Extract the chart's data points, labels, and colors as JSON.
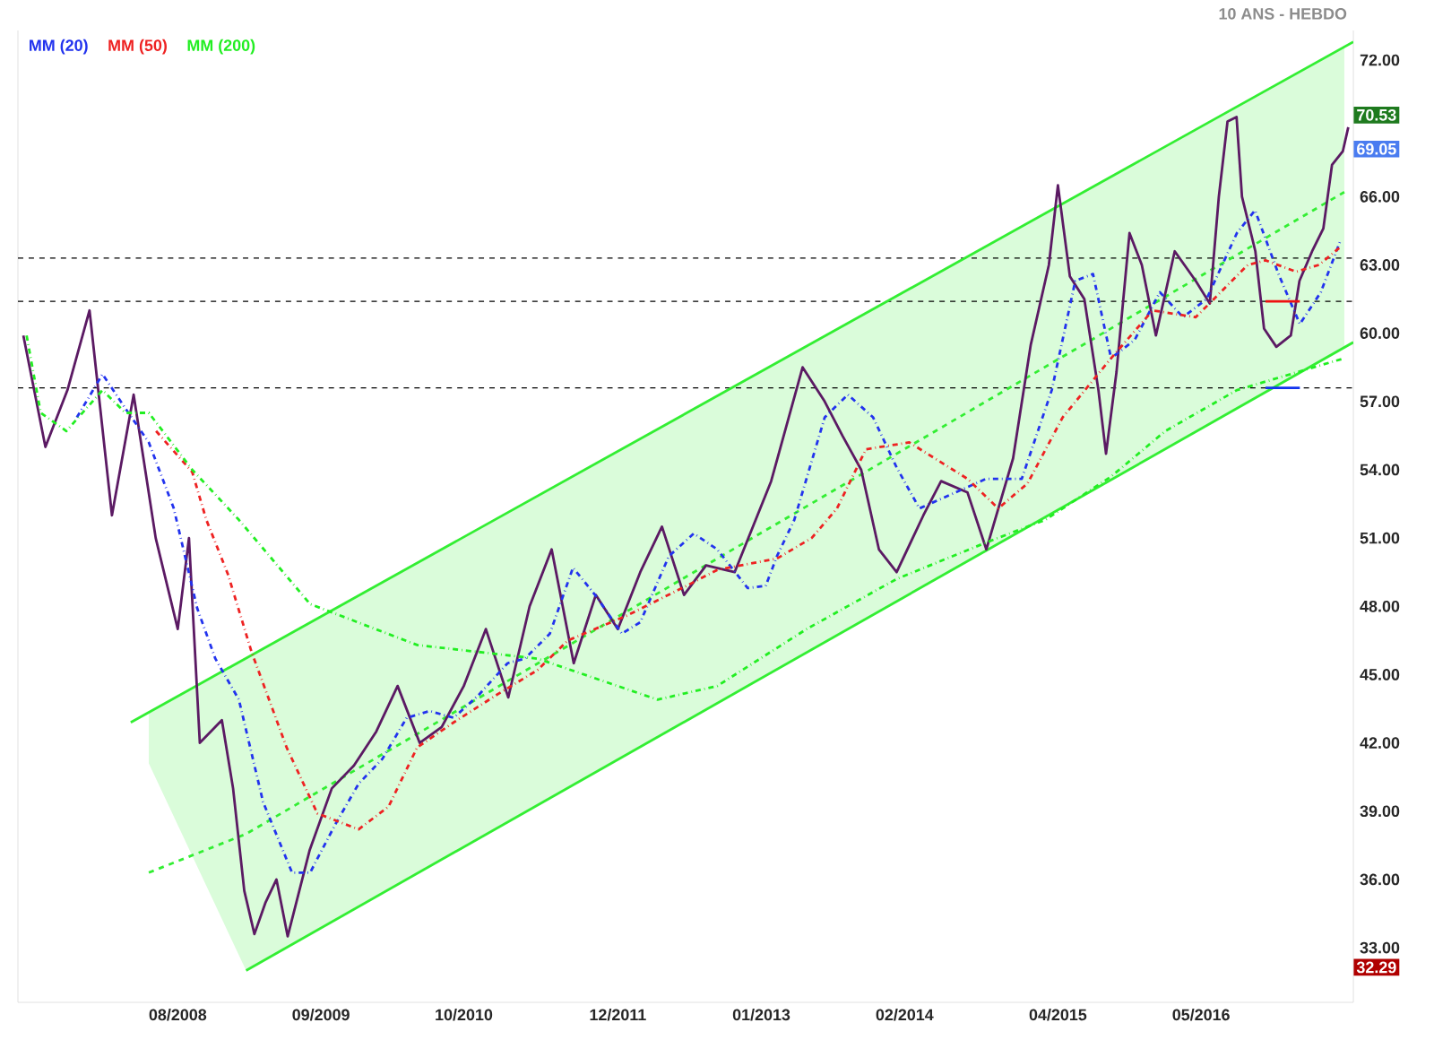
{
  "chart_data": {
    "type": "line",
    "subtitle": "10 ANS - HEBDO",
    "xlim": [
      "2007-05-17",
      "2017-06-26"
    ],
    "xticks": [
      {
        "value": "2008-08-01",
        "label": "08/2008"
      },
      {
        "value": "2009-09-01",
        "label": "09/2009"
      },
      {
        "value": "2010-10-01",
        "label": "10/2010"
      },
      {
        "value": "2011-12-01",
        "label": "12/2011"
      },
      {
        "value": "2013-01-01",
        "label": "01/2013"
      },
      {
        "value": "2014-02-01",
        "label": "02/2014"
      },
      {
        "value": "2015-04-01",
        "label": "04/2015"
      },
      {
        "value": "2016-05-01",
        "label": "05/2016"
      }
    ],
    "ylim": [
      30.6,
      73.3
    ],
    "yticks": [
      {
        "value": 33,
        "label": "33.00"
      },
      {
        "value": 36,
        "label": "36.00"
      },
      {
        "value": 39,
        "label": "39.00"
      },
      {
        "value": 42,
        "label": "42.00"
      },
      {
        "value": 45,
        "label": "45.00"
      },
      {
        "value": 48,
        "label": "48.00"
      },
      {
        "value": 51,
        "label": "51.00"
      },
      {
        "value": 54,
        "label": "54.00"
      },
      {
        "value": 57,
        "label": "57.00"
      },
      {
        "value": 60,
        "label": "60.00"
      },
      {
        "value": 63,
        "label": "63.00"
      },
      {
        "value": 66,
        "label": "66.00"
      },
      {
        "value": 72,
        "label": "72.00"
      }
    ],
    "legend": "top left",
    "series": [
      {
        "color": "#33ee33",
        "line_style": "dashed",
        "x": [
          "2008-05-13",
          "2009-02-06",
          "2017-06-01"
        ],
        "values": [
          36.3,
          38.0,
          66.2
        ],
        "lower": [
          41.1,
          32.0,
          59.4
        ],
        "upper": [
          43.3,
          45.7,
          72.6
        ]
      },
      {
        "color": "#33ee33",
        "line_style": "solid",
        "x": [
          "2008-03-24",
          "2017-06-26"
        ],
        "values": [
          42.9,
          72.8
        ]
      },
      {
        "color": "#33ee33",
        "line_style": "solid",
        "x": [
          "2009-02-06",
          "2017-06-26"
        ],
        "values": [
          32.0,
          59.6
        ]
      },
      {
        "color": "#5b1a63",
        "line_style": "solid",
        "x": [
          "2007-06-01",
          "2007-08-01",
          "2007-10-01",
          "2007-12-01",
          "2008-02-01",
          "2008-04-01",
          "2008-06-01",
          "2008-08-01",
          "2008-09-01",
          "2008-10-01",
          "2008-12-01",
          "2009-01-01",
          "2009-02-01",
          "2009-03-01",
          "2009-04-01",
          "2009-05-01",
          "2009-06-01",
          "2009-08-01",
          "2009-10-01",
          "2009-12-01",
          "2010-02-01",
          "2010-04-01",
          "2010-06-01",
          "2010-08-01",
          "2010-10-01",
          "2010-12-01",
          "2011-02-01",
          "2011-04-01",
          "2011-06-01",
          "2011-08-01",
          "2011-10-01",
          "2011-12-01",
          "2012-02-01",
          "2012-04-01",
          "2012-06-01",
          "2012-08-01",
          "2012-10-19",
          "2013-01-28",
          "2013-04-25",
          "2013-06-25",
          "2013-08-13",
          "2013-10-04",
          "2013-11-22",
          "2014-01-10",
          "2014-03-25",
          "2014-05-13",
          "2014-07-25",
          "2014-09-15",
          "2014-11-28",
          "2015-01-16",
          "2015-03-07",
          "2015-04-01",
          "2015-05-04",
          "2015-06-13",
          "2015-07-22",
          "2015-08-12",
          "2015-09-10",
          "2015-10-16",
          "2015-11-19",
          "2015-12-28",
          "2016-02-18",
          "2016-04-16",
          "2016-05-25",
          "2016-06-19",
          "2016-07-13",
          "2016-08-07",
          "2016-08-22",
          "2016-09-28",
          "2016-10-22",
          "2016-11-25",
          "2017-01-04",
          "2017-01-28",
          "2017-03-04",
          "2017-04-04",
          "2017-04-28",
          "2017-05-28",
          "2017-06-12"
        ],
        "values": [
          59.9,
          55,
          57.5,
          61,
          52,
          57.3,
          51,
          47,
          51,
          42,
          43,
          40,
          35.5,
          33.6,
          35,
          36,
          33.5,
          37.3,
          40,
          41,
          42.5,
          44.5,
          42,
          42.7,
          44.5,
          47,
          44,
          48,
          50.5,
          45.5,
          48.5,
          47,
          49.5,
          51.5,
          48.5,
          49.8,
          49.5,
          53.5,
          58.5,
          57,
          55.5,
          54,
          50.5,
          49.5,
          52,
          53.5,
          53,
          50.5,
          54.5,
          59.5,
          63,
          66.5,
          62.5,
          61.5,
          57.5,
          54.7,
          58.3,
          64.4,
          63,
          59.9,
          63.6,
          62.3,
          61.3,
          66,
          69.3,
          69.5,
          66,
          63.6,
          60.2,
          59.4,
          59.9,
          62.3,
          63.6,
          64.6,
          67.4,
          68,
          69.05
        ]
      },
      {
        "name": "MM (20)",
        "color": "#2233ee",
        "line_style": "dashdot",
        "x": [
          "2007-10-27",
          "2008-01-06",
          "2008-03-09",
          "2008-05-13",
          "2008-07-21",
          "2008-09-24",
          "2008-11-13",
          "2009-01-17",
          "2009-03-25",
          "2009-06-13",
          "2009-08-02",
          "2009-10-10",
          "2009-12-14",
          "2010-02-18",
          "2010-04-26",
          "2010-06-29",
          "2010-09-03",
          "2010-11-11",
          "2011-01-30",
          "2011-03-19",
          "2011-05-27",
          "2011-07-30",
          "2011-10-04",
          "2011-12-12",
          "2012-02-01",
          "2012-04-20",
          "2012-06-28",
          "2012-09-01",
          "2012-11-24",
          "2013-01-13",
          "2013-02-13",
          "2013-04-02",
          "2013-06-25",
          "2013-08-28",
          "2013-11-06",
          "2014-01-10",
          "2014-03-14",
          "2014-09-14",
          "2014-12-22",
          "2015-03-15",
          "2015-05-19",
          "2015-07-07",
          "2015-08-26",
          "2015-10-30",
          "2016-01-08",
          "2016-03-12",
          "2016-05-16",
          "2016-08-08",
          "2016-09-27",
          "2016-12-01",
          "2017-01-29",
          "2017-03-28",
          "2017-05-22"
        ],
        "values": [
          56.3,
          58.2,
          56.7,
          55.2,
          52.3,
          47.9,
          45.7,
          43.9,
          39.4,
          36.3,
          36.3,
          38.4,
          40.2,
          41.3,
          43.1,
          43.4,
          43.1,
          44.1,
          45.5,
          45.7,
          46.8,
          49.7,
          48.4,
          46.8,
          47.3,
          50.2,
          51.2,
          50.5,
          48.8,
          48.9,
          50.2,
          51.8,
          56.3,
          57.3,
          56.3,
          54.1,
          52.3,
          53.6,
          53.6,
          57.5,
          62.3,
          62.6,
          58.9,
          59.7,
          61.8,
          60.7,
          61.5,
          64.4,
          65.4,
          62.6,
          60.4,
          61.8,
          64.1
        ]
      },
      {
        "name": "MM (50)",
        "color": "#ee2222",
        "line_style": "dashdot",
        "x": [
          "2008-06-02",
          "2008-09-10",
          "2008-10-19",
          "2008-12-18",
          "2009-02-21",
          "2009-05-29",
          "2009-08-22",
          "2009-12-14",
          "2010-03-07",
          "2010-05-25",
          "2010-09-03",
          "2010-12-30",
          "2011-04-23",
          "2011-07-16",
          "2011-12-27",
          "2012-06-08",
          "2012-09-01",
          "2013-02-13",
          "2013-05-20",
          "2013-07-29",
          "2013-10-17",
          "2014-02-14",
          "2014-07-25",
          "2014-10-18",
          "2015-01-07",
          "2015-04-14",
          "2015-08-26",
          "2015-12-19",
          "2016-04-16",
          "2016-09-07",
          "2016-10-26",
          "2017-01-19",
          "2017-03-23",
          "2017-05-22"
        ],
        "values": [
          55.7,
          53.9,
          51.8,
          49.4,
          46.0,
          41.8,
          38.9,
          38.2,
          39.2,
          41.8,
          42.9,
          44.1,
          45.2,
          46.5,
          47.6,
          48.9,
          49.6,
          50.1,
          51.0,
          52.3,
          54.9,
          55.2,
          53.6,
          52.3,
          53.4,
          56.3,
          58.9,
          61.0,
          60.7,
          63.0,
          63.2,
          62.7,
          63.0,
          63.8
        ]
      },
      {
        "name": "MM (200)",
        "color": "#22ee22",
        "line_style": "dashdot",
        "x": [
          "2007-06-10",
          "2007-07-19",
          "2007-09-28",
          "2008-01-06",
          "2008-03-09",
          "2008-05-13",
          "2008-09-10",
          "2009-01-17",
          "2009-08-02",
          "2010-05-25",
          "2011-04-23",
          "2012-03-20",
          "2012-09-01",
          "2013-05-06",
          "2014-01-10",
          "2014-09-14",
          "2015-02-25",
          "2015-08-26",
          "2016-01-23",
          "2016-08-08",
          "2017-06-01"
        ],
        "values": [
          59.9,
          56.5,
          55.7,
          57.5,
          56.5,
          56.5,
          54.0,
          51.8,
          48.1,
          46.3,
          45.7,
          43.9,
          44.5,
          47.0,
          49.2,
          50.8,
          51.8,
          53.7,
          55.7,
          57.5,
          58.9
        ]
      },
      {
        "color": "#ee1111",
        "line_style": "solid",
        "x": [
          "2016-10-26",
          "2017-01-29"
        ],
        "values": [
          61.4,
          61.4
        ]
      },
      {
        "color": "#1133ee",
        "line_style": "solid",
        "x": [
          "2016-10-26",
          "2017-01-29"
        ],
        "values": [
          57.6,
          57.6
        ]
      }
    ],
    "ref_lines": [
      {
        "axis": "y",
        "value": 63.3,
        "color": "#000000",
        "line_style": "dashed"
      },
      {
        "axis": "y",
        "value": 61.4,
        "color": "#000000",
        "line_style": "dashed"
      },
      {
        "axis": "y",
        "value": 57.6,
        "color": "#000000",
        "line_style": "dashed"
      }
    ],
    "annotations": [
      "70.53",
      "69.05",
      "32.29"
    ]
  }
}
